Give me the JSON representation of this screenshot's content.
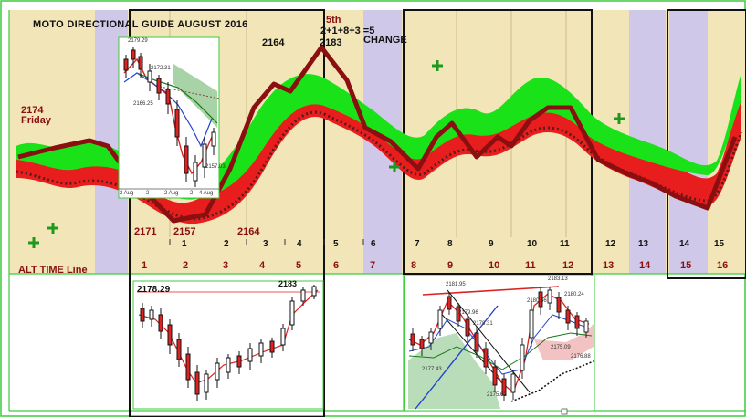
{
  "chart_title": "MOTO DIRECTIONAL GUIDE AUGUST 2016",
  "notes": {
    "fifth": "5th",
    "sum": "2+1+8+3 =5",
    "change": "CHANGE",
    "left_value": "2174",
    "left_day": "Friday",
    "alt_time_line": "ALT TIME Line"
  },
  "price_labels": [
    "2164",
    "2183",
    "2171",
    "2157",
    "2164"
  ],
  "upper_scale": [
    "1",
    "2",
    "3",
    "4",
    "5",
    "6",
    "7",
    "8",
    "9",
    "10",
    "11",
    "12",
    "13",
    "14",
    "15"
  ],
  "lower_scale": [
    "1",
    "2",
    "3",
    "4",
    "5",
    "6",
    "7",
    "8",
    "9",
    "10",
    "11",
    "12",
    "13",
    "14",
    "15",
    "16"
  ],
  "inset_top_left": {
    "price_tags": [
      "2179.29",
      "2172.31",
      "2166.25",
      "2157.03"
    ],
    "x_ticks": [
      "2 Aug",
      "2",
      "2 Aug",
      "2",
      "4 Aug"
    ]
  },
  "inset_bottom_left": {
    "price_tags": [
      "2178.29",
      "2183"
    ]
  },
  "inset_bottom_right": {
    "price_tags": [
      "2181.95",
      "2183.13",
      "2178.31",
      "2177.43",
      "2175.62",
      "2175.09",
      "2180.24",
      "2180.56",
      "2176.88",
      "2179.96"
    ]
  },
  "colors": {
    "background": "#f2e6b8",
    "lavender_band": "#cfc8e8",
    "dark_red": "#8a0f10",
    "band_red": "#e81e1e",
    "band_green": "#19e219",
    "frame_green": "#3ccc3c"
  },
  "chart_data": {
    "type": "line",
    "title": "MOTO DIRECTIONAL GUIDE AUGUST 2016",
    "x": [
      "1",
      "2",
      "3",
      "4",
      "5",
      "6",
      "7",
      "8",
      "9",
      "10",
      "11",
      "12",
      "13",
      "14",
      "15",
      "16"
    ],
    "series": [
      {
        "values": [
          2171,
          2157,
          2164,
          2174,
          2183,
          2176,
          2170,
          2165,
          2172,
          2170,
          2176,
          2171,
          2166,
          2164,
          2160,
          2175
        ]
      }
    ]
  }
}
